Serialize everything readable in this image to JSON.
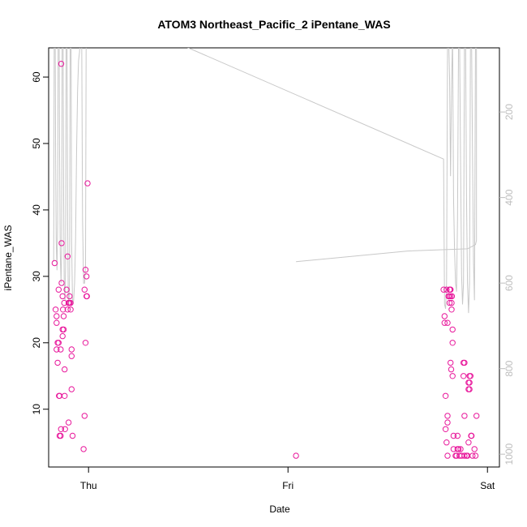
{
  "chart_data": {
    "type": "scatter",
    "title": "ATOM3 Northeast_Pacific_2 iPentane_WAS",
    "xlabel": "Date",
    "ylabel": "iPentane_WAS",
    "x_ticks": [
      "Thu",
      "Fri",
      "Sat"
    ],
    "y_ticks": [
      10,
      20,
      30,
      40,
      50,
      60
    ],
    "y_right_ticks": [
      200,
      400,
      600,
      800,
      1000
    ],
    "ylim": [
      1.3,
      64.4
    ],
    "y_right_lim": [
      50,
      1030
    ],
    "series": [
      {
        "kind": "points",
        "color": "#e8179b",
        "points": [
          [
            -0.17,
            32
          ],
          [
            -0.165,
            25
          ],
          [
            -0.16,
            24
          ],
          [
            -0.16,
            23
          ],
          [
            -0.16,
            19
          ],
          [
            -0.155,
            17
          ],
          [
            -0.155,
            20
          ],
          [
            -0.15,
            28
          ],
          [
            -0.15,
            20
          ],
          [
            -0.148,
            12
          ],
          [
            -0.145,
            12
          ],
          [
            -0.145,
            6
          ],
          [
            -0.14,
            19
          ],
          [
            -0.14,
            6
          ],
          [
            -0.138,
            7
          ],
          [
            -0.135,
            35
          ],
          [
            -0.135,
            29
          ],
          [
            -0.13,
            27
          ],
          [
            -0.13,
            22
          ],
          [
            -0.13,
            21
          ],
          [
            -0.128,
            25
          ],
          [
            -0.125,
            24
          ],
          [
            -0.125,
            22
          ],
          [
            -0.122,
            26
          ],
          [
            -0.12,
            16
          ],
          [
            -0.12,
            12
          ],
          [
            -0.118,
            7
          ],
          [
            -0.137,
            62
          ],
          [
            -0.11,
            28
          ],
          [
            -0.105,
            33
          ],
          [
            -0.105,
            25
          ],
          [
            -0.1,
            26
          ],
          [
            -0.1,
            26
          ],
          [
            -0.1,
            8
          ],
          [
            -0.095,
            27
          ],
          [
            -0.095,
            26
          ],
          [
            -0.09,
            25
          ],
          [
            -0.09,
            26
          ],
          [
            -0.085,
            19
          ],
          [
            -0.085,
            18
          ],
          [
            -0.085,
            13
          ],
          [
            -0.08,
            6
          ],
          [
            -0.025,
            4
          ],
          [
            -0.02,
            9
          ],
          [
            -0.02,
            28
          ],
          [
            -0.015,
            31
          ],
          [
            -0.015,
            20
          ],
          [
            -0.01,
            27
          ],
          [
            -0.01,
            30
          ],
          [
            -0.008,
            27
          ],
          [
            -0.005,
            44
          ],
          [
            1.04,
            3
          ],
          [
            1.78,
            28
          ],
          [
            1.785,
            23
          ],
          [
            1.785,
            24
          ],
          [
            1.79,
            12
          ],
          [
            1.79,
            7
          ],
          [
            1.795,
            28
          ],
          [
            1.795,
            5
          ],
          [
            1.8,
            23
          ],
          [
            1.8,
            8
          ],
          [
            1.8,
            9
          ],
          [
            1.8,
            3
          ],
          [
            1.805,
            27
          ],
          [
            1.805,
            27
          ],
          [
            1.808,
            27
          ],
          [
            1.81,
            26
          ],
          [
            1.81,
            28
          ],
          [
            1.812,
            28
          ],
          [
            1.815,
            28
          ],
          [
            1.815,
            27
          ],
          [
            1.815,
            17
          ],
          [
            1.818,
            16
          ],
          [
            1.82,
            25
          ],
          [
            1.82,
            26
          ],
          [
            1.822,
            27
          ],
          [
            1.825,
            22
          ],
          [
            1.825,
            20
          ],
          [
            1.825,
            15
          ],
          [
            1.83,
            6
          ],
          [
            1.83,
            4
          ],
          [
            1.84,
            3
          ],
          [
            1.845,
            3
          ],
          [
            1.85,
            4
          ],
          [
            1.85,
            6
          ],
          [
            1.855,
            4
          ],
          [
            1.86,
            3
          ],
          [
            1.865,
            4
          ],
          [
            1.87,
            3
          ],
          [
            1.88,
            17
          ],
          [
            1.88,
            15
          ],
          [
            1.885,
            17
          ],
          [
            1.885,
            9
          ],
          [
            1.885,
            3
          ],
          [
            1.895,
            3
          ],
          [
            1.9,
            3
          ],
          [
            1.905,
            13
          ],
          [
            1.905,
            5
          ],
          [
            1.905,
            14
          ],
          [
            1.91,
            15
          ],
          [
            1.91,
            13
          ],
          [
            1.91,
            14
          ],
          [
            1.915,
            15
          ],
          [
            1.918,
            6
          ],
          [
            1.92,
            6
          ],
          [
            1.925,
            3
          ],
          [
            1.935,
            4
          ],
          [
            1.94,
            3
          ],
          [
            1.945,
            9
          ]
        ]
      },
      {
        "kind": "line",
        "color": "#c8c8c8",
        "axis": "right",
        "points": [
          [
            -0.175,
            550
          ],
          [
            -0.172,
            0
          ],
          [
            -0.168,
            -50
          ],
          [
            -0.165,
            300
          ],
          [
            -0.162,
            500
          ],
          [
            -0.158,
            570
          ],
          [
            -0.155,
            460
          ],
          [
            -0.152,
            0
          ],
          [
            -0.148,
            -50
          ],
          [
            -0.145,
            300
          ],
          [
            -0.142,
            530
          ],
          [
            -0.138,
            600
          ],
          [
            -0.135,
            520
          ],
          [
            -0.132,
            0
          ],
          [
            -0.128,
            -50
          ],
          [
            -0.125,
            400
          ],
          [
            -0.122,
            600
          ],
          [
            -0.118,
            640
          ],
          [
            -0.115,
            560
          ],
          [
            -0.112,
            0
          ],
          [
            -0.108,
            -50
          ],
          [
            -0.105,
            450
          ],
          [
            -0.102,
            620
          ],
          [
            -0.098,
            650
          ],
          [
            -0.095,
            580
          ],
          [
            -0.092,
            0
          ],
          [
            -0.088,
            -50
          ],
          [
            -0.085,
            500
          ],
          [
            -0.08,
            650
          ],
          [
            -0.075,
            640
          ],
          [
            -0.07,
            600
          ],
          [
            -0.065,
            500
          ],
          [
            -0.06,
            300
          ],
          [
            -0.055,
            150
          ],
          [
            -0.05,
            80
          ],
          [
            -0.045,
            60
          ],
          [
            -0.04,
            0
          ],
          [
            -0.035,
            -50
          ],
          [
            -0.03,
            450
          ],
          [
            -0.025,
            600
          ],
          [
            -0.02,
            600
          ],
          [
            -0.015,
            560
          ],
          [
            -0.012,
            0
          ],
          [
            -0.005,
            -50
          ],
          [
            0.5,
            50
          ],
          [
            1.78,
            310
          ],
          [
            1.785,
            650
          ],
          [
            1.79,
            660
          ],
          [
            1.795,
            600
          ],
          [
            1.8,
            40
          ],
          [
            1.805,
            20
          ],
          [
            1.81,
            120
          ],
          [
            1.815,
            350
          ],
          [
            1.82,
            130
          ],
          [
            1.825,
            20
          ],
          [
            1.83,
            400
          ],
          [
            1.835,
            520
          ],
          [
            1.84,
            600
          ],
          [
            1.845,
            620
          ],
          [
            1.85,
            450
          ],
          [
            1.855,
            20
          ],
          [
            1.86,
            20
          ],
          [
            1.865,
            300
          ],
          [
            1.87,
            580
          ],
          [
            1.875,
            650
          ],
          [
            1.88,
            600
          ],
          [
            1.885,
            20
          ],
          [
            1.89,
            20
          ],
          [
            1.895,
            400
          ],
          [
            1.9,
            600
          ],
          [
            1.905,
            670
          ],
          [
            1.91,
            600
          ],
          [
            1.915,
            20
          ],
          [
            1.92,
            20
          ],
          [
            1.925,
            300
          ],
          [
            1.93,
            550
          ],
          [
            1.935,
            640
          ],
          [
            1.94,
            20
          ],
          [
            1.945,
            40
          ],
          [
            1.945,
            500
          ],
          [
            1.94,
            510
          ],
          [
            1.9,
            520
          ],
          [
            1.6,
            525
          ],
          [
            1.04,
            550
          ]
        ]
      }
    ]
  }
}
